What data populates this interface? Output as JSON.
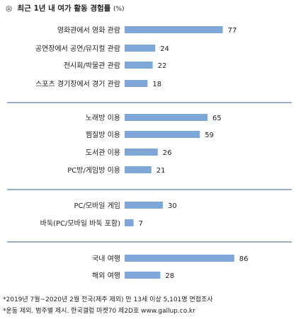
{
  "title": "최근 1년 내 여가 활동 경험률",
  "title_unit": "(%)",
  "chart_data": {
    "type": "bar",
    "orientation": "horizontal",
    "bar_color": "#7ea6d6",
    "xlim": [
      0,
      100
    ],
    "groups": [
      {
        "categories": [
          "영화관에서 영화 관람",
          "공연장에서 공연/뮤지컬 관람",
          "전시회/박물관 관람",
          "스포츠 경기장에서 경기 관람"
        ],
        "values": [
          77,
          24,
          22,
          18
        ]
      },
      {
        "categories": [
          "노래방 이용",
          "찜질방 이용",
          "도서관 이용",
          "PC방/게임방 이용"
        ],
        "values": [
          65,
          59,
          26,
          21
        ]
      },
      {
        "categories": [
          "PC/모바일 게임",
          "바둑(PC/모바일 바둑 포함)"
        ],
        "values": [
          30,
          7
        ]
      },
      {
        "categories": [
          "국내 여행",
          "해외 여행"
        ],
        "values": [
          86,
          28
        ]
      }
    ]
  },
  "notes": [
    "*2019년 7월~2020년 2월 전국(제주 제외) 만 13세 이상 5,101명 면접조사",
    "*운동 제외. 범주별 제시. 한국갤럽 마켓70 제2D호 www.gallup.co.kr"
  ]
}
